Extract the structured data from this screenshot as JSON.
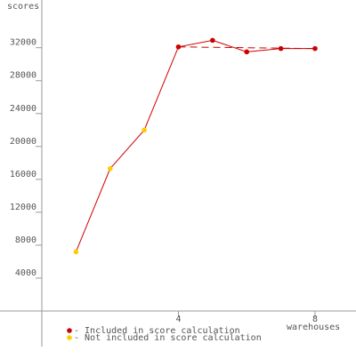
{
  "chart_data": {
    "type": "line",
    "y_label": "scores",
    "x_label": "warehouses",
    "x": [
      1,
      2,
      3,
      4,
      5,
      6,
      7,
      8
    ],
    "values": [
      7200,
      17300,
      22000,
      32100,
      32900,
      31500,
      31900,
      31900
    ],
    "line_color": "#cc0000",
    "point_colors": [
      "#ffcc00",
      "#ffcc00",
      "#ffcc00",
      "#cc0000",
      "#cc0000",
      "#cc0000",
      "#cc0000",
      "#cc0000"
    ],
    "score_line": {
      "x": [
        4,
        8
      ],
      "values": [
        32100,
        31900
      ],
      "color": "#cc0000"
    },
    "legend": [
      {
        "label": "- Included in score calculation",
        "color": "#cc0000"
      },
      {
        "label": "- Not included in score calculation",
        "color": "#ffcc00"
      }
    ],
    "xlim": [
      0,
      9.2
    ],
    "ylim": [
      -5400,
      37800
    ],
    "xticks": [
      4,
      8
    ],
    "yticks": [
      4000,
      8000,
      12000,
      16000,
      20000,
      24000,
      28000,
      32000
    ]
  }
}
